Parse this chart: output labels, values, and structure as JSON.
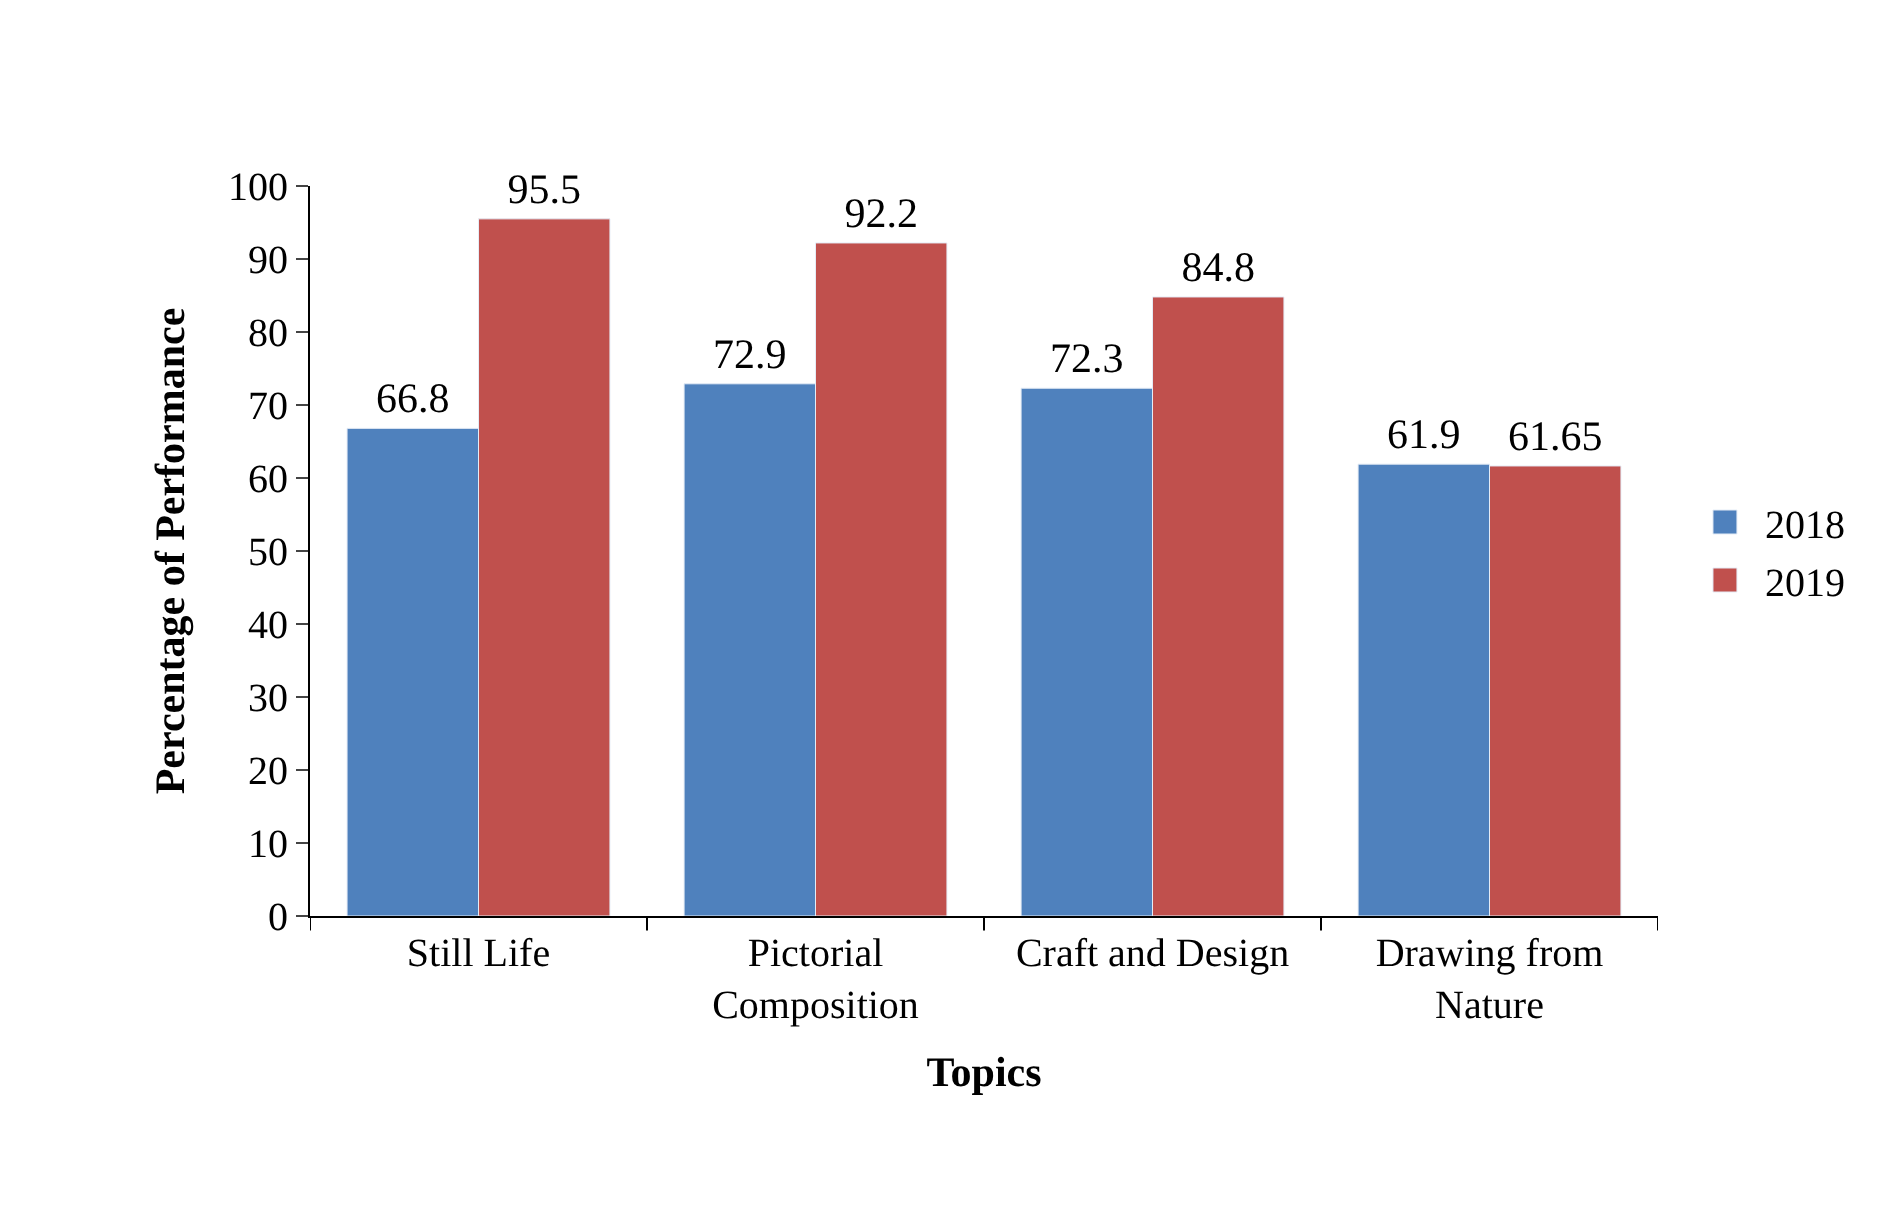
{
  "chart_data": {
    "type": "bar",
    "xlabel": "Topics",
    "ylabel": "Percentage of Performance",
    "categories": [
      "Still Life",
      "Pictorial Composition",
      "Craft and Design",
      "Drawing from Nature"
    ],
    "series": [
      {
        "name": "2018",
        "color": "#4f81bd",
        "values": [
          66.8,
          72.9,
          72.3,
          61.9
        ]
      },
      {
        "name": "2019",
        "color": "#c0504d",
        "values": [
          95.5,
          92.2,
          84.8,
          61.65
        ]
      }
    ],
    "ylim": [
      0,
      100
    ],
    "yticks": [
      0,
      10,
      20,
      30,
      40,
      50,
      60,
      70,
      80,
      90,
      100
    ],
    "data_labels": true,
    "legend": "right"
  }
}
